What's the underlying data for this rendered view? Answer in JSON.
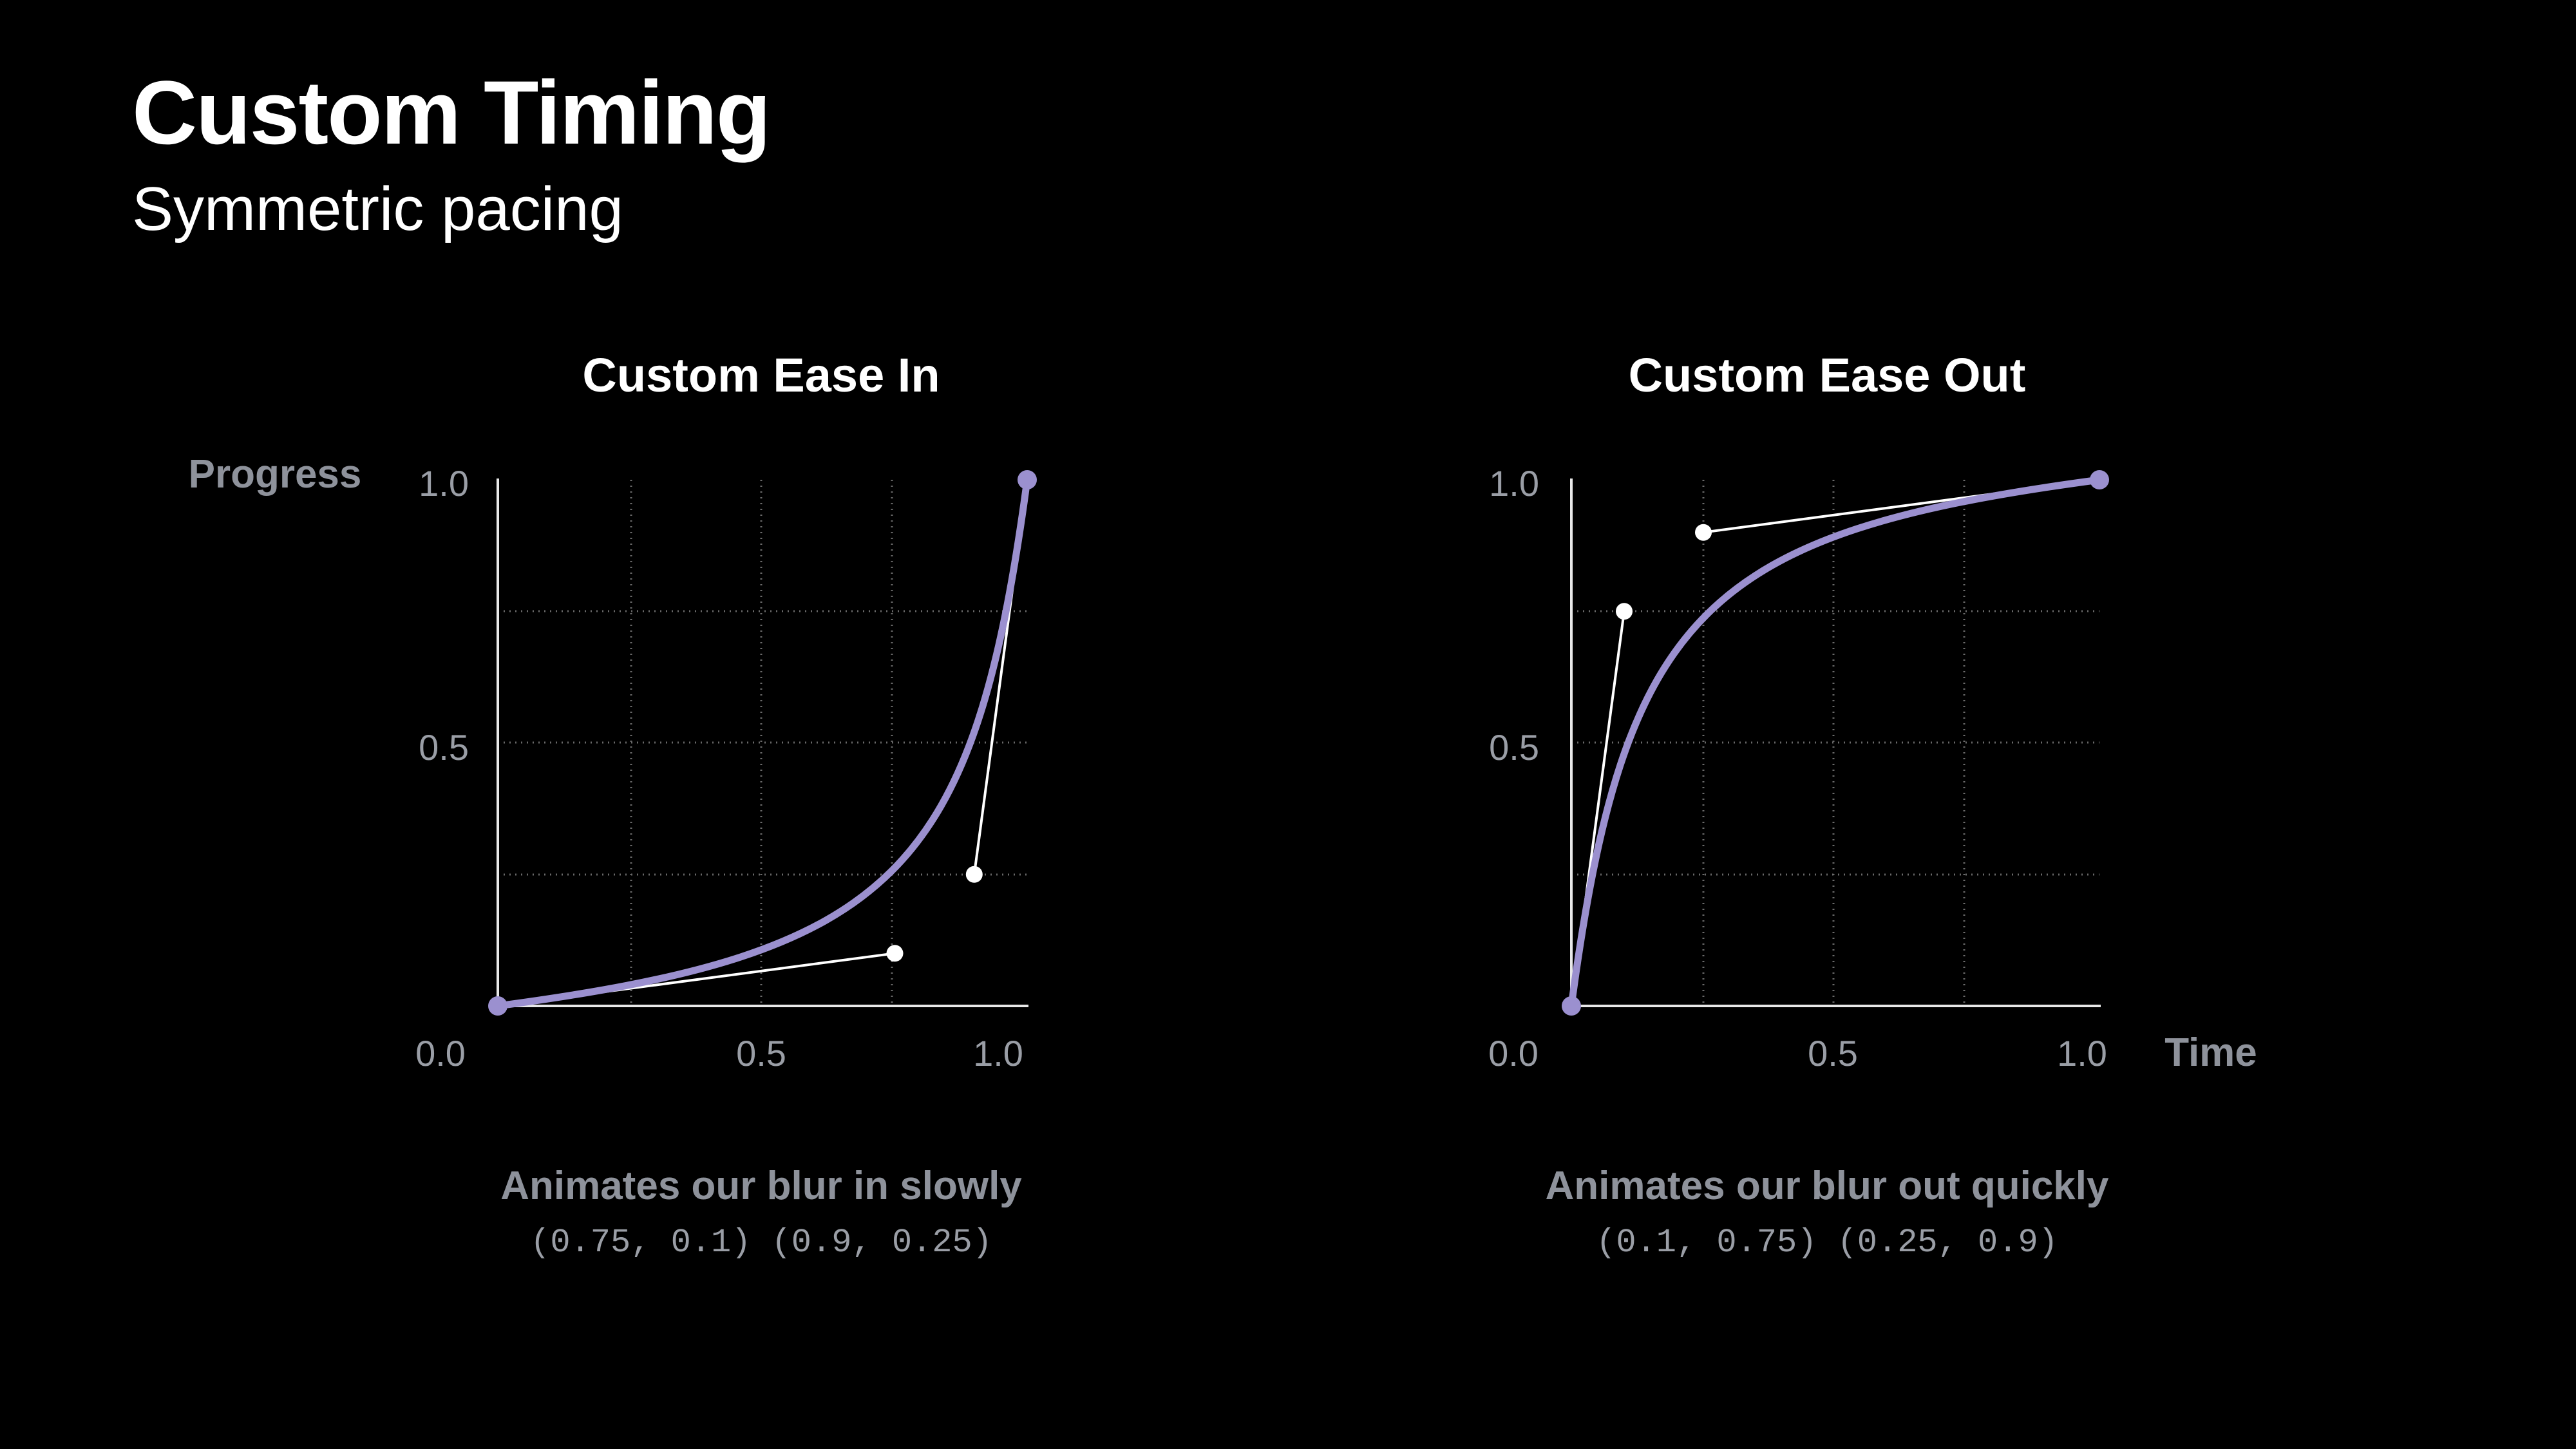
{
  "slide": {
    "title": "Custom Timing",
    "subtitle": "Symmetric pacing"
  },
  "colors": {
    "background": "#000000",
    "curve": "#9b90cf",
    "handles": "#ffffff",
    "muted_text": "#8e929b"
  },
  "axes": {
    "y_word": "Progress",
    "x_word": "Time"
  },
  "charts": [
    {
      "title": "Custom Ease In",
      "caption": "Animates our blur in slowly",
      "points_text": "(0.75, 0.1) (0.9, 0.25)",
      "x_ticks": [
        "0.0",
        "0.5",
        "1.0"
      ],
      "y_ticks": [
        "1.0",
        "0.5"
      ]
    },
    {
      "title": "Custom Ease Out",
      "caption": "Animates our blur out quickly",
      "points_text": "(0.1, 0.75) (0.25, 0.9)",
      "x_ticks": [
        "0.0",
        "0.5",
        "1.0"
      ],
      "y_ticks": [
        "1.0",
        "0.5"
      ]
    }
  ],
  "chart_data": [
    {
      "type": "line",
      "title": "Custom Ease In",
      "xlabel": "",
      "ylabel": "Progress",
      "xlim": [
        0,
        1
      ],
      "ylim": [
        0,
        1
      ],
      "grid": true,
      "bezier": {
        "p0": [
          0,
          0
        ],
        "p1": [
          0.75,
          0.1
        ],
        "p2": [
          0.9,
          0.25
        ],
        "p3": [
          1,
          1
        ]
      }
    },
    {
      "type": "line",
      "title": "Custom Ease Out",
      "xlabel": "Time",
      "ylabel": "",
      "xlim": [
        0,
        1
      ],
      "ylim": [
        0,
        1
      ],
      "grid": true,
      "bezier": {
        "p0": [
          0,
          0
        ],
        "p1": [
          0.1,
          0.75
        ],
        "p2": [
          0.25,
          0.9
        ],
        "p3": [
          1,
          1
        ]
      }
    }
  ]
}
